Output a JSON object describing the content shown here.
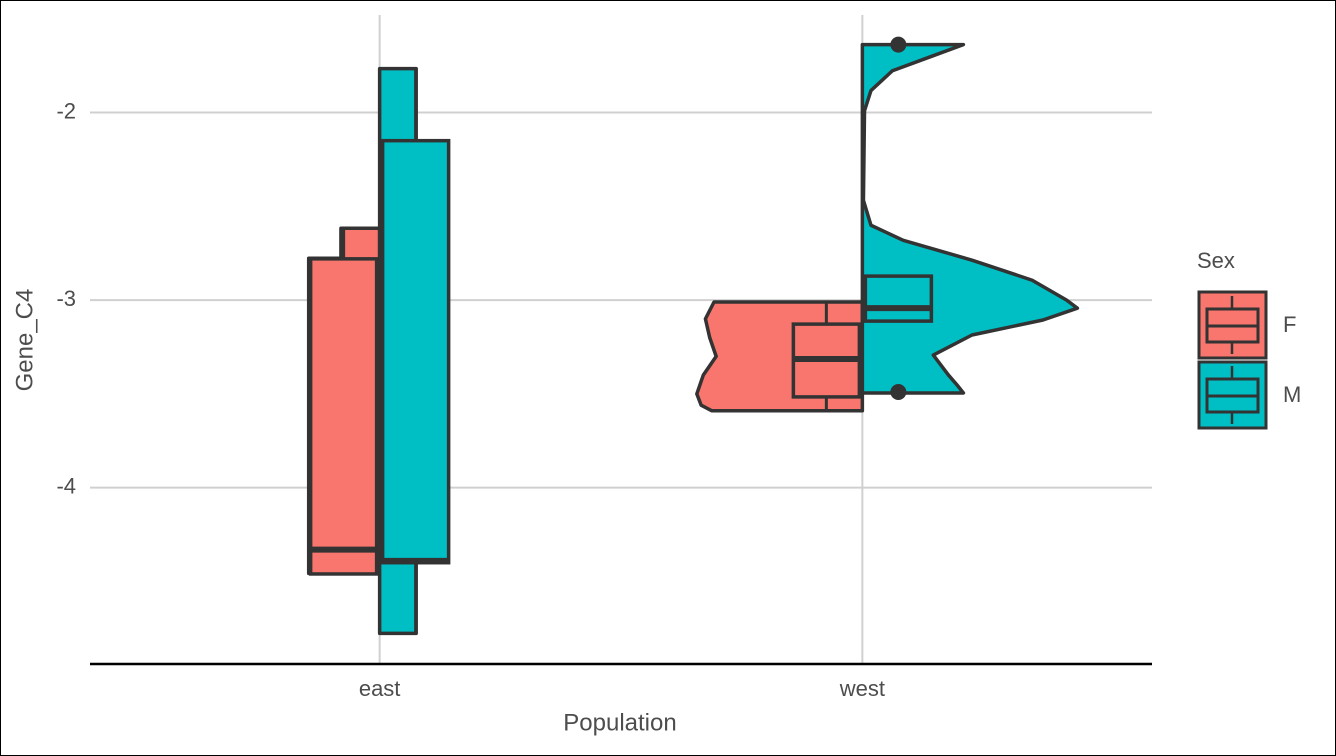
{
  "chart_data": {
    "type": "violin",
    "x_label": "Population",
    "y_label": "Gene_C4",
    "legend_title": "Sex",
    "legend_position": "right",
    "grid": true,
    "categories": [
      "east",
      "west"
    ],
    "ylim": [
      -4.94,
      -1.48
    ],
    "yticks": [
      -4,
      -3,
      -2
    ],
    "series": [
      {
        "name": "F",
        "color": "#F8766D",
        "groups": [
          {
            "violin_y": [
              -2.617,
              -2.777,
              -2.777,
              -4.457
            ],
            "violin_density": [
              0.18,
              0.18,
              0.33,
              0.33
            ],
            "whisker_low": -4.46,
            "q1": -4.46,
            "median": -4.33,
            "q3": -2.78,
            "whisker_high": -2.62,
            "outliers": []
          },
          {
            "violin_y": [
              -3.01,
              -3.1,
              -3.2,
              -3.3,
              -3.4,
              -3.5,
              -3.56,
              -3.59
            ],
            "violin_density": [
              0.69,
              0.73,
              0.71,
              0.68,
              0.74,
              0.77,
              0.75,
              0.7
            ],
            "whisker_low": -3.596,
            "q1": -3.516,
            "median": -3.314,
            "q3": -3.128,
            "whisker_high": -3.01,
            "outliers": []
          }
        ]
      },
      {
        "name": "M",
        "color": "#00BFC4",
        "groups": [
          {
            "violin_y": [
              -1.766,
              -4.777
            ],
            "violin_density": [
              0.17,
              0.17
            ],
            "whisker_low": -4.777,
            "q1": -4.4,
            "median": -4.39,
            "q3": -2.15,
            "whisker_high": -1.766,
            "outliers": []
          },
          {
            "violin_y": [
              -1.638,
              -1.697,
              -1.777,
              -1.883,
              -1.99,
              -2.468,
              -2.601,
              -2.681,
              -2.787,
              -2.894,
              -3.0,
              -3.043,
              -3.106,
              -3.186,
              -3.293,
              -3.399,
              -3.452,
              -3.495
            ],
            "violin_density": [
              0.47,
              0.33,
              0.14,
              0.04,
              0.01,
              0.005,
              0.04,
              0.19,
              0.51,
              0.79,
              0.95,
              1.0,
              0.84,
              0.51,
              0.33,
              0.4,
              0.44,
              0.47
            ],
            "whisker_low": -3.112,
            "q1": -3.112,
            "median": -3.043,
            "q3": -2.872,
            "whisker_high": -2.872,
            "outliers": [
              -1.638,
              -3.49
            ]
          }
        ]
      }
    ]
  }
}
